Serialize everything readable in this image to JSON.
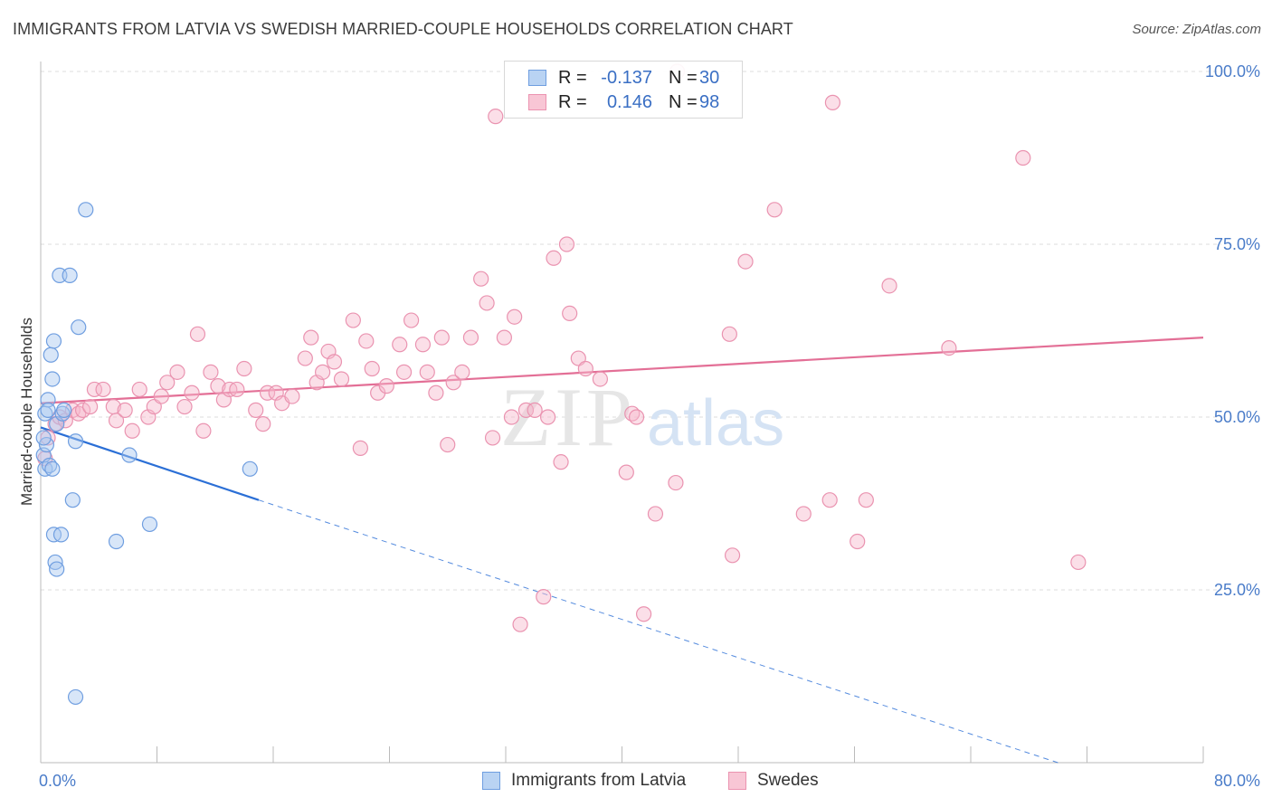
{
  "title": "IMMIGRANTS FROM LATVIA VS SWEDISH MARRIED-COUPLE HOUSEHOLDS CORRELATION CHART",
  "source": "Source: ZipAtlas.com",
  "watermark": {
    "zip": "ZIP",
    "atlas": "atlas"
  },
  "colors": {
    "blue": "#2b6fd6",
    "blue_fill": "#a9c8f0",
    "pink": "#e36f96",
    "pink_fill": "#f6b8cb",
    "tick": "#4a7cc9"
  },
  "legend": {
    "rows": [
      {
        "r_label": "R =",
        "r_value": "-0.137",
        "n_label": "N =",
        "n_value": "30"
      },
      {
        "r_label": "R =",
        "r_value": "0.146",
        "n_label": "N =",
        "n_value": "98"
      }
    ]
  },
  "bottom_legend": [
    "Immigrants from Latvia",
    "Swedes"
  ],
  "chart_data": {
    "type": "scatter",
    "title": "IMMIGRANTS FROM LATVIA VS SWEDISH MARRIED-COUPLE HOUSEHOLDS CORRELATION CHART",
    "ylabel": "Married-couple Households",
    "xlabel": "",
    "xlim": [
      0,
      80
    ],
    "ylim": [
      0,
      100
    ],
    "x_tick_labels": [
      "0.0%",
      "80.0%"
    ],
    "y_ticks": [
      25,
      50,
      75,
      100
    ],
    "y_tick_labels": [
      "25.0%",
      "50.0%",
      "75.0%",
      "100.0%"
    ],
    "grid": true,
    "legend_position": "top-center",
    "series": [
      {
        "name": "Immigrants from Latvia",
        "color": "#2b6fd6",
        "r": -0.137,
        "n": 30,
        "trend": {
          "x0": 0,
          "y0": 48.5,
          "x1": 15,
          "y1": 38,
          "dashed_to_x": 70,
          "dashed_to_y": 0
        },
        "points": [
          [
            0.2,
            44.5
          ],
          [
            0.3,
            42.5
          ],
          [
            0.3,
            50.5
          ],
          [
            0.4,
            46.0
          ],
          [
            0.5,
            52.5
          ],
          [
            0.5,
            51.0
          ],
          [
            0.6,
            43.0
          ],
          [
            0.7,
            59.0
          ],
          [
            0.8,
            55.5
          ],
          [
            0.8,
            42.5
          ],
          [
            0.9,
            61.0
          ],
          [
            0.9,
            33.0
          ],
          [
            1.0,
            29.0
          ],
          [
            1.1,
            28.0
          ],
          [
            1.1,
            49.0
          ],
          [
            1.3,
            70.5
          ],
          [
            1.4,
            33.0
          ],
          [
            1.5,
            50.5
          ],
          [
            1.6,
            51.0
          ],
          [
            2.0,
            70.5
          ],
          [
            2.2,
            38.0
          ],
          [
            2.4,
            46.5
          ],
          [
            2.4,
            9.5
          ],
          [
            2.6,
            63.0
          ],
          [
            3.1,
            80.0
          ],
          [
            5.2,
            32.0
          ],
          [
            6.1,
            44.5
          ],
          [
            7.5,
            34.5
          ],
          [
            14.4,
            42.5
          ],
          [
            0.2,
            47.0
          ]
        ]
      },
      {
        "name": "Swedes",
        "color": "#e36f96",
        "r": 0.146,
        "n": 98,
        "trend": {
          "x0": 0,
          "y0": 52.0,
          "x1": 80,
          "y1": 61.5
        },
        "points": [
          [
            0.3,
            44.0
          ],
          [
            0.5,
            47.0
          ],
          [
            1.0,
            49.0
          ],
          [
            1.3,
            50.0
          ],
          [
            1.7,
            49.5
          ],
          [
            2.2,
            51.0
          ],
          [
            2.6,
            50.5
          ],
          [
            2.9,
            51.0
          ],
          [
            3.4,
            51.5
          ],
          [
            3.7,
            54.0
          ],
          [
            4.3,
            54.0
          ],
          [
            5.0,
            51.5
          ],
          [
            5.2,
            49.5
          ],
          [
            5.8,
            51.0
          ],
          [
            6.3,
            48.0
          ],
          [
            6.8,
            54.0
          ],
          [
            7.4,
            50.0
          ],
          [
            7.8,
            51.5
          ],
          [
            8.3,
            53.0
          ],
          [
            8.7,
            55.0
          ],
          [
            9.4,
            56.5
          ],
          [
            9.9,
            51.5
          ],
          [
            10.4,
            53.5
          ],
          [
            10.8,
            62.0
          ],
          [
            11.2,
            48.0
          ],
          [
            11.7,
            56.5
          ],
          [
            12.2,
            54.5
          ],
          [
            12.6,
            52.5
          ],
          [
            13.0,
            54.0
          ],
          [
            13.5,
            54.0
          ],
          [
            14.0,
            57.0
          ],
          [
            14.8,
            51.0
          ],
          [
            15.3,
            49.0
          ],
          [
            15.6,
            53.5
          ],
          [
            16.2,
            53.5
          ],
          [
            16.6,
            52.0
          ],
          [
            17.3,
            53.0
          ],
          [
            18.2,
            58.5
          ],
          [
            18.6,
            61.5
          ],
          [
            19.0,
            55.0
          ],
          [
            19.4,
            56.5
          ],
          [
            19.8,
            59.5
          ],
          [
            20.2,
            58.0
          ],
          [
            20.7,
            55.5
          ],
          [
            21.5,
            64.0
          ],
          [
            22.0,
            45.5
          ],
          [
            22.4,
            61.0
          ],
          [
            22.8,
            57.0
          ],
          [
            23.2,
            53.5
          ],
          [
            23.8,
            54.5
          ],
          [
            24.7,
            60.5
          ],
          [
            25.0,
            56.5
          ],
          [
            25.5,
            64.0
          ],
          [
            26.3,
            60.5
          ],
          [
            26.6,
            56.5
          ],
          [
            27.2,
            53.5
          ],
          [
            27.6,
            61.5
          ],
          [
            28.0,
            46.0
          ],
          [
            28.4,
            55.0
          ],
          [
            29.0,
            56.5
          ],
          [
            29.6,
            61.5
          ],
          [
            30.3,
            70.0
          ],
          [
            30.7,
            66.5
          ],
          [
            31.1,
            47.0
          ],
          [
            31.3,
            93.5
          ],
          [
            31.9,
            61.5
          ],
          [
            32.4,
            50.0
          ],
          [
            32.6,
            64.5
          ],
          [
            33.4,
            51.0
          ],
          [
            34.0,
            51.0
          ],
          [
            34.6,
            24.0
          ],
          [
            33.0,
            20.0
          ],
          [
            34.9,
            50.0
          ],
          [
            35.3,
            73.0
          ],
          [
            35.8,
            43.5
          ],
          [
            36.2,
            75.0
          ],
          [
            36.4,
            65.0
          ],
          [
            37.0,
            58.5
          ],
          [
            37.5,
            57.0
          ],
          [
            38.5,
            55.5
          ],
          [
            40.3,
            42.0
          ],
          [
            40.7,
            50.5
          ],
          [
            41.0,
            50.0
          ],
          [
            41.5,
            21.5
          ],
          [
            42.3,
            36.0
          ],
          [
            43.7,
            40.5
          ],
          [
            47.4,
            62.0
          ],
          [
            47.6,
            30.0
          ],
          [
            48.5,
            72.5
          ],
          [
            50.5,
            80.0
          ],
          [
            52.5,
            36.0
          ],
          [
            54.3,
            38.0
          ],
          [
            54.5,
            95.5
          ],
          [
            56.2,
            32.0
          ],
          [
            56.8,
            38.0
          ],
          [
            58.4,
            69.0
          ],
          [
            62.5,
            60.0
          ],
          [
            67.6,
            87.5
          ],
          [
            71.4,
            29.0
          ],
          [
            43.8,
            100.0
          ]
        ]
      }
    ]
  }
}
